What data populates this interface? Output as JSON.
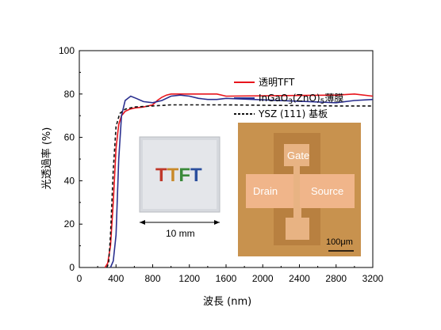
{
  "chart_data": {
    "type": "line",
    "title": "",
    "xlabel": "波長 (nm)",
    "ylabel": "光透過率 (%)",
    "xlim": [
      0,
      3200
    ],
    "ylim": [
      0,
      100
    ],
    "x_ticks": [
      "0",
      "400",
      "800",
      "1200",
      "1600",
      "2000",
      "2400",
      "2800",
      "3200"
    ],
    "y_ticks": [
      "0",
      "20",
      "40",
      "60",
      "80",
      "100"
    ],
    "legend_position": "top-right",
    "series": [
      {
        "name": "透明TFT",
        "color": "#e8141c",
        "dash": "solid",
        "points": [
          [
            280,
            0
          ],
          [
            310,
            2
          ],
          [
            340,
            10
          ],
          [
            370,
            30
          ],
          [
            400,
            55
          ],
          [
            430,
            66
          ],
          [
            460,
            70
          ],
          [
            500,
            72
          ],
          [
            550,
            73
          ],
          [
            600,
            73.5
          ],
          [
            700,
            74
          ],
          [
            800,
            75
          ],
          [
            850,
            77
          ],
          [
            900,
            78.5
          ],
          [
            950,
            79.5
          ],
          [
            1000,
            80
          ],
          [
            1100,
            80
          ],
          [
            1200,
            80
          ],
          [
            1300,
            80
          ],
          [
            1400,
            80
          ],
          [
            1500,
            80
          ],
          [
            1600,
            79
          ],
          [
            2800,
            79.5
          ],
          [
            3000,
            80
          ],
          [
            3200,
            79
          ]
        ]
      },
      {
        "name": "InGaO3(ZnO)5薄膜",
        "color": "#2a2f8f",
        "dash": "solid",
        "points": [
          [
            340,
            0
          ],
          [
            370,
            3
          ],
          [
            400,
            15
          ],
          [
            430,
            50
          ],
          [
            460,
            70
          ],
          [
            500,
            77
          ],
          [
            560,
            79
          ],
          [
            620,
            78
          ],
          [
            700,
            76.5
          ],
          [
            800,
            76
          ],
          [
            900,
            77
          ],
          [
            1000,
            79
          ],
          [
            1100,
            79.5
          ],
          [
            1200,
            79
          ],
          [
            1300,
            78
          ],
          [
            1400,
            77.5
          ],
          [
            1500,
            77.5
          ],
          [
            1600,
            78
          ],
          [
            2800,
            76
          ],
          [
            3000,
            77
          ],
          [
            3200,
            77.5
          ]
        ]
      },
      {
        "name": "YSZ (111) 基板",
        "color": "#111111",
        "dash": "4,3",
        "points": [
          [
            300,
            0
          ],
          [
            320,
            2
          ],
          [
            340,
            15
          ],
          [
            370,
            45
          ],
          [
            400,
            65
          ],
          [
            440,
            71
          ],
          [
            500,
            73
          ],
          [
            600,
            74
          ],
          [
            800,
            74.5
          ],
          [
            1000,
            75
          ],
          [
            1200,
            75
          ],
          [
            1400,
            75
          ],
          [
            1600,
            75
          ],
          [
            2800,
            74.5
          ],
          [
            3000,
            74.5
          ],
          [
            3200,
            74.5
          ]
        ]
      }
    ],
    "legend_labels": {
      "s1": "透明TFT",
      "s2_prefix": "InGaO",
      "s2_sub": "3",
      "s2_mid": "(ZnO)",
      "s2_sub2": "5",
      "s2_suffix": "薄膜",
      "s3": "YSZ (111) 基板"
    },
    "inset_photo": {
      "letters": [
        {
          "char": "T",
          "color": "#c0392b"
        },
        {
          "char": "T",
          "color": "#c98a2a"
        },
        {
          "char": "F",
          "color": "#3a8a3a"
        },
        {
          "char": "T",
          "color": "#2b4f9e"
        }
      ],
      "scale_label": "10 mm"
    },
    "inset_micrograph": {
      "gate_label": "Gate",
      "drain_label": "Drain",
      "source_label": "Source",
      "scale_label": "100μm"
    }
  }
}
